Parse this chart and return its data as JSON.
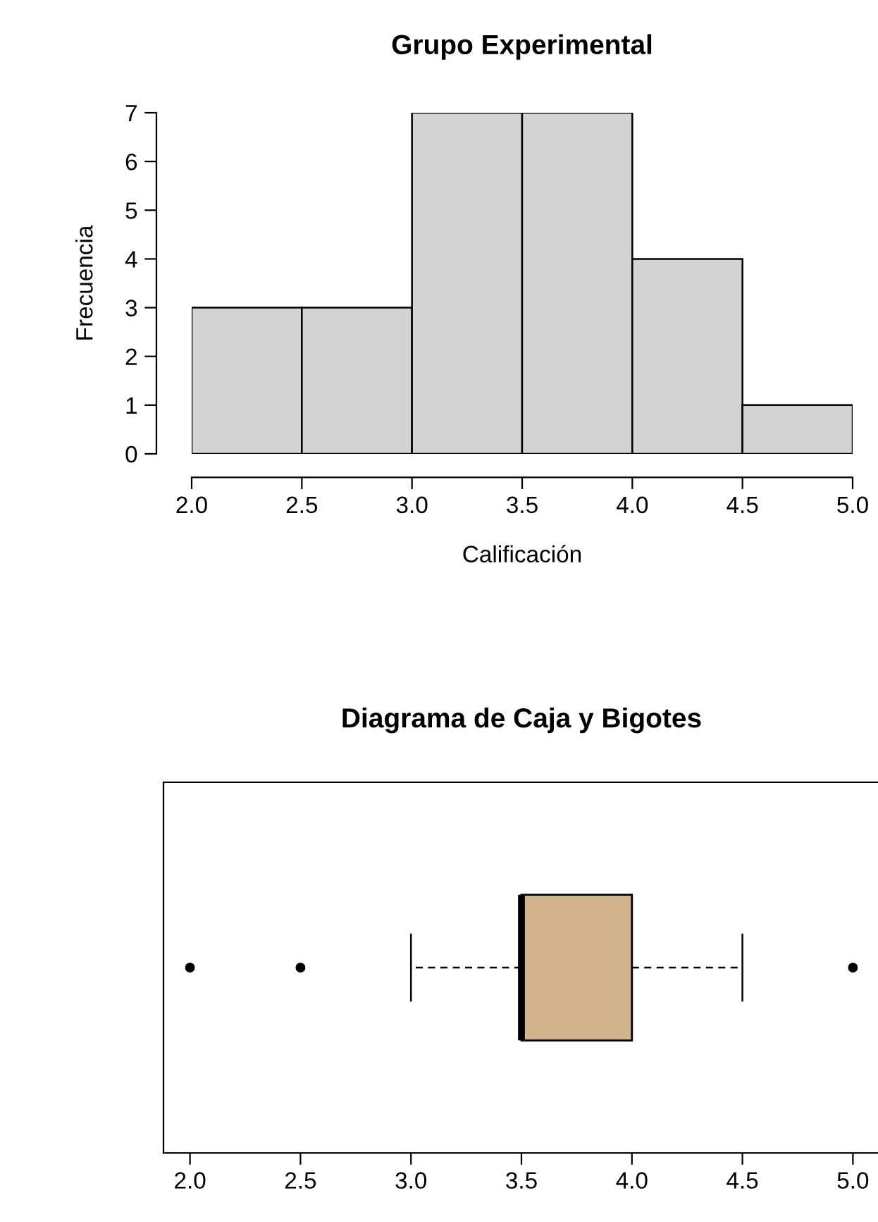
{
  "chart_data": [
    {
      "type": "histogram",
      "title": "Grupo Experimental",
      "xlabel": "Calificación",
      "ylabel": "Frecuencia",
      "bins": [
        2.0,
        2.5,
        3.0,
        3.5,
        4.0,
        4.5,
        5.0
      ],
      "values": [
        3,
        3,
        7,
        7,
        4,
        1
      ],
      "color": "#d3d3d3",
      "xlim": [
        2.0,
        5.0
      ],
      "ylim": [
        0,
        7
      ],
      "xticks": [
        {
          "value": 2,
          "label": "2.0"
        },
        {
          "value": 2.5,
          "label": "2.5"
        },
        {
          "value": 3,
          "label": "3.0"
        },
        {
          "value": 3.5,
          "label": "3.5"
        },
        {
          "value": 4,
          "label": "4.0"
        },
        {
          "value": 4.5,
          "label": "4.5"
        },
        {
          "value": 5,
          "label": "5.0"
        }
      ],
      "yticks": [
        0,
        1,
        2,
        3,
        4,
        5,
        6,
        7
      ],
      "grid": false
    },
    {
      "type": "box",
      "title": "Diagrama de Caja y Bigotes",
      "orientation": "horizontal",
      "categories": [
        null
      ],
      "color": "#d2b48c",
      "boxes": [
        {
          "low": 3.0,
          "q1": 3.5,
          "median": 3.5,
          "q3": 4.0,
          "high": 4.5,
          "outliers": [
            2.0,
            2.5,
            5.0
          ]
        }
      ],
      "xlim": [
        1.88,
        5.12
      ],
      "xticks": [
        {
          "value": 2,
          "label": "2.0"
        },
        {
          "value": 2.5,
          "label": "2.5"
        },
        {
          "value": 3,
          "label": "3.0"
        },
        {
          "value": 3.5,
          "label": "3.5"
        },
        {
          "value": 4,
          "label": "4.0"
        },
        {
          "value": 4.5,
          "label": "4.5"
        },
        {
          "value": 5,
          "label": "5.0"
        }
      ],
      "grid": false
    }
  ]
}
